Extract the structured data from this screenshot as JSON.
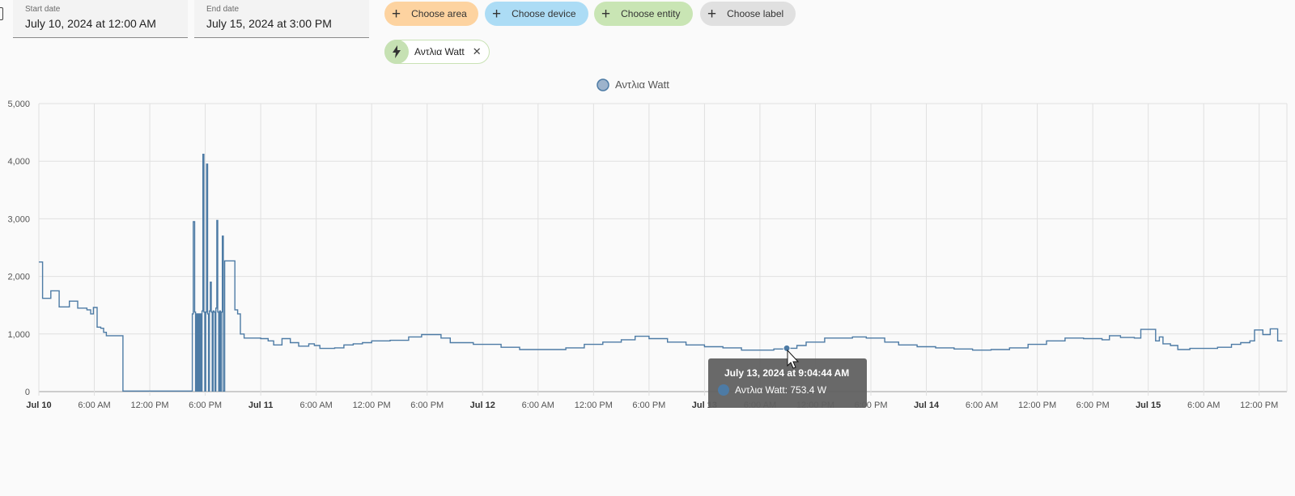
{
  "start_date": {
    "label": "Start date",
    "value": "July 10, 2024 at 12:00 AM"
  },
  "end_date": {
    "label": "End date",
    "value": "July 15, 2024 at 3:00 PM"
  },
  "target_chips": [
    {
      "label": "Choose area",
      "color": "#fdd3a0"
    },
    {
      "label": "Choose device",
      "color": "#acdcf5"
    },
    {
      "label": "Choose entity",
      "color": "#c9e5b4"
    },
    {
      "label": "Choose label",
      "color": "#e0e0e0"
    }
  ],
  "selected_entity": {
    "label": "Αντλια Watt",
    "icon": "lightning-bolt-icon",
    "color": "#c6e1b3"
  },
  "chart_data": {
    "type": "line",
    "series": [
      {
        "name": "Αντλια Watt",
        "color": "#4d7ba5",
        "step": true
      }
    ],
    "y_ticks": [
      "5,000",
      "4,000",
      "3,000",
      "2,000",
      "1,000",
      "0"
    ],
    "ylim": [
      0,
      5000
    ],
    "x_tick_labels": [
      "Jul 10",
      "6:00 AM",
      "12:00 PM",
      "6:00 PM",
      "Jul 11",
      "6:00 AM",
      "12:00 PM",
      "6:00 PM",
      "Jul 12",
      "6:00 AM",
      "12:00 PM",
      "6:00 PM",
      "Jul 13",
      "6:00 AM",
      "12:00 PM",
      "6:00 PM",
      "Jul 14",
      "6:00 AM",
      "12:00 PM",
      "6:00 PM",
      "Jul 15",
      "6:00 AM",
      "12:00 PM"
    ],
    "x_tick_bold": [
      true,
      false,
      false,
      false,
      true,
      false,
      false,
      false,
      true,
      false,
      false,
      false,
      true,
      false,
      false,
      false,
      true,
      false,
      false,
      false,
      true,
      false,
      false
    ],
    "x_range_hours": [
      0,
      135
    ],
    "points": [
      [
        0,
        2250
      ],
      [
        0.4,
        1620
      ],
      [
        1.3,
        1750
      ],
      [
        2.2,
        1470
      ],
      [
        3.3,
        1570
      ],
      [
        4.2,
        1450
      ],
      [
        5.2,
        1420
      ],
      [
        5.6,
        1350
      ],
      [
        5.9,
        1460
      ],
      [
        6.3,
        1120
      ],
      [
        6.7,
        1100
      ],
      [
        7.0,
        1030
      ],
      [
        7.3,
        970
      ],
      [
        8.3,
        970
      ],
      [
        9.1,
        10
      ],
      [
        16.5,
        10
      ],
      [
        16.6,
        1350
      ],
      [
        16.7,
        2950
      ],
      [
        16.85,
        1380
      ],
      [
        16.95,
        10
      ],
      [
        17.05,
        1350
      ],
      [
        17.15,
        10
      ],
      [
        17.25,
        1350
      ],
      [
        17.35,
        10
      ],
      [
        17.45,
        1350
      ],
      [
        17.55,
        10
      ],
      [
        17.65,
        1400
      ],
      [
        17.75,
        4120
      ],
      [
        17.85,
        1380
      ],
      [
        17.95,
        10
      ],
      [
        18.05,
        1380
      ],
      [
        18.15,
        3950
      ],
      [
        18.25,
        1350
      ],
      [
        18.35,
        10
      ],
      [
        18.45,
        1400
      ],
      [
        18.55,
        1900
      ],
      [
        18.65,
        1380
      ],
      [
        18.75,
        10
      ],
      [
        18.85,
        1400
      ],
      [
        18.95,
        1380
      ],
      [
        19.05,
        10
      ],
      [
        19.15,
        1450
      ],
      [
        19.25,
        2970
      ],
      [
        19.35,
        1380
      ],
      [
        19.45,
        10
      ],
      [
        19.55,
        1400
      ],
      [
        19.65,
        10
      ],
      [
        19.75,
        1380
      ],
      [
        19.85,
        2700
      ],
      [
        19.95,
        10
      ],
      [
        20.1,
        2270
      ],
      [
        21.2,
        1420
      ],
      [
        21.5,
        1350
      ],
      [
        21.8,
        1000
      ],
      [
        22.2,
        930
      ],
      [
        24.0,
        920
      ],
      [
        24.8,
        880
      ],
      [
        25.4,
        810
      ],
      [
        26.3,
        920
      ],
      [
        27.2,
        850
      ],
      [
        28.1,
        790
      ],
      [
        29.2,
        830
      ],
      [
        29.8,
        800
      ],
      [
        30.4,
        750
      ],
      [
        32.0,
        760
      ],
      [
        33.0,
        810
      ],
      [
        34.0,
        830
      ],
      [
        35.0,
        850
      ],
      [
        36.0,
        880
      ],
      [
        38.0,
        890
      ],
      [
        40.0,
        950
      ],
      [
        41.4,
        990
      ],
      [
        43.5,
        930
      ],
      [
        44.5,
        850
      ],
      [
        47.0,
        820
      ],
      [
        50.0,
        770
      ],
      [
        52.0,
        730
      ],
      [
        54.0,
        730
      ],
      [
        57.0,
        760
      ],
      [
        59.0,
        820
      ],
      [
        61.0,
        860
      ],
      [
        63.0,
        900
      ],
      [
        64.5,
        960
      ],
      [
        66.0,
        920
      ],
      [
        68.0,
        860
      ],
      [
        70.0,
        810
      ],
      [
        72.0,
        780
      ],
      [
        74.0,
        760
      ],
      [
        76.0,
        720
      ],
      [
        78.0,
        720
      ],
      [
        79.5,
        740
      ],
      [
        80.9,
        753
      ],
      [
        82.0,
        800
      ],
      [
        83.0,
        860
      ],
      [
        85.0,
        930
      ],
      [
        88.0,
        950
      ],
      [
        89.5,
        930
      ],
      [
        91.5,
        860
      ],
      [
        93.0,
        810
      ],
      [
        95.0,
        780
      ],
      [
        97.0,
        760
      ],
      [
        99.0,
        740
      ],
      [
        101.0,
        720
      ],
      [
        103.0,
        730
      ],
      [
        105.0,
        760
      ],
      [
        107.0,
        820
      ],
      [
        109.0,
        880
      ],
      [
        111.0,
        930
      ],
      [
        113.0,
        920
      ],
      [
        115.0,
        900
      ],
      [
        115.8,
        970
      ],
      [
        117.0,
        940
      ],
      [
        118.5,
        930
      ],
      [
        119.2,
        1080
      ],
      [
        120.8,
        880
      ],
      [
        121.2,
        950
      ],
      [
        121.6,
        830
      ],
      [
        122.4,
        800
      ],
      [
        123.2,
        730
      ],
      [
        124.5,
        750
      ],
      [
        127.5,
        770
      ],
      [
        129.0,
        820
      ],
      [
        130.0,
        850
      ],
      [
        131.0,
        880
      ],
      [
        131.5,
        1070
      ],
      [
        132.4,
        990
      ],
      [
        133.2,
        1090
      ],
      [
        134.0,
        880
      ],
      [
        134.5,
        880
      ]
    ],
    "legend_placement": "top-center",
    "tooltip": {
      "title": "July 13, 2024 at 9:04:44 AM",
      "line": "Αντλια Watt: 753.4 W",
      "hour": 80.9,
      "value": 753.4
    },
    "grid": true
  }
}
